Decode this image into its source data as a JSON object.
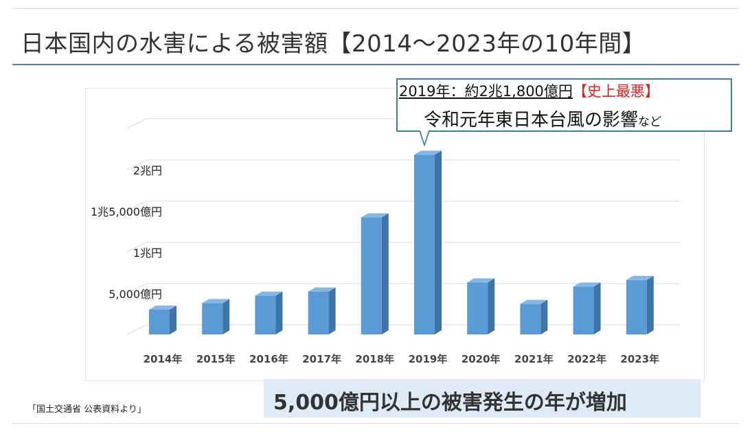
{
  "page": {
    "title": "日本国内の水害による被害額【2014～2023年の10年間】",
    "source": "「国土交通省 公表資料より」",
    "banner": "5,000億円以上の被害発生の年が増加"
  },
  "callout": {
    "line1_main": "2019年：約2兆1,800億円",
    "line1_tag": "【史上最悪】",
    "line2_main": "令和元年東日本台風の影響",
    "line2_suffix": "など"
  },
  "colors": {
    "bar_front": "#5b9bd5",
    "bar_side": "#3f74a8",
    "bar_top": "#86b7e3",
    "title_rule": "#4f81bd",
    "callout_border": "#3a7fa8",
    "banner_bg": "#deeaf6",
    "worst_red": "#e02020"
  },
  "chart_data": {
    "type": "bar",
    "style": "3d-column",
    "categories": [
      "2014年",
      "2015年",
      "2016年",
      "2017年",
      "2018年",
      "2019年",
      "2020年",
      "2021年",
      "2022年",
      "2023年"
    ],
    "values": [
      3000,
      3800,
      4700,
      5200,
      14200,
      21800,
      6300,
      3700,
      5800,
      6600
    ],
    "unit": "億円",
    "ylim": [
      0,
      25000
    ],
    "yticks": [
      {
        "value": 5000,
        "label": "5,000億円"
      },
      {
        "value": 10000,
        "label": "1兆円"
      },
      {
        "value": 15000,
        "label": "1兆5,000億円"
      },
      {
        "value": 20000,
        "label": "2兆円"
      }
    ],
    "grid": true,
    "legend": "none"
  }
}
